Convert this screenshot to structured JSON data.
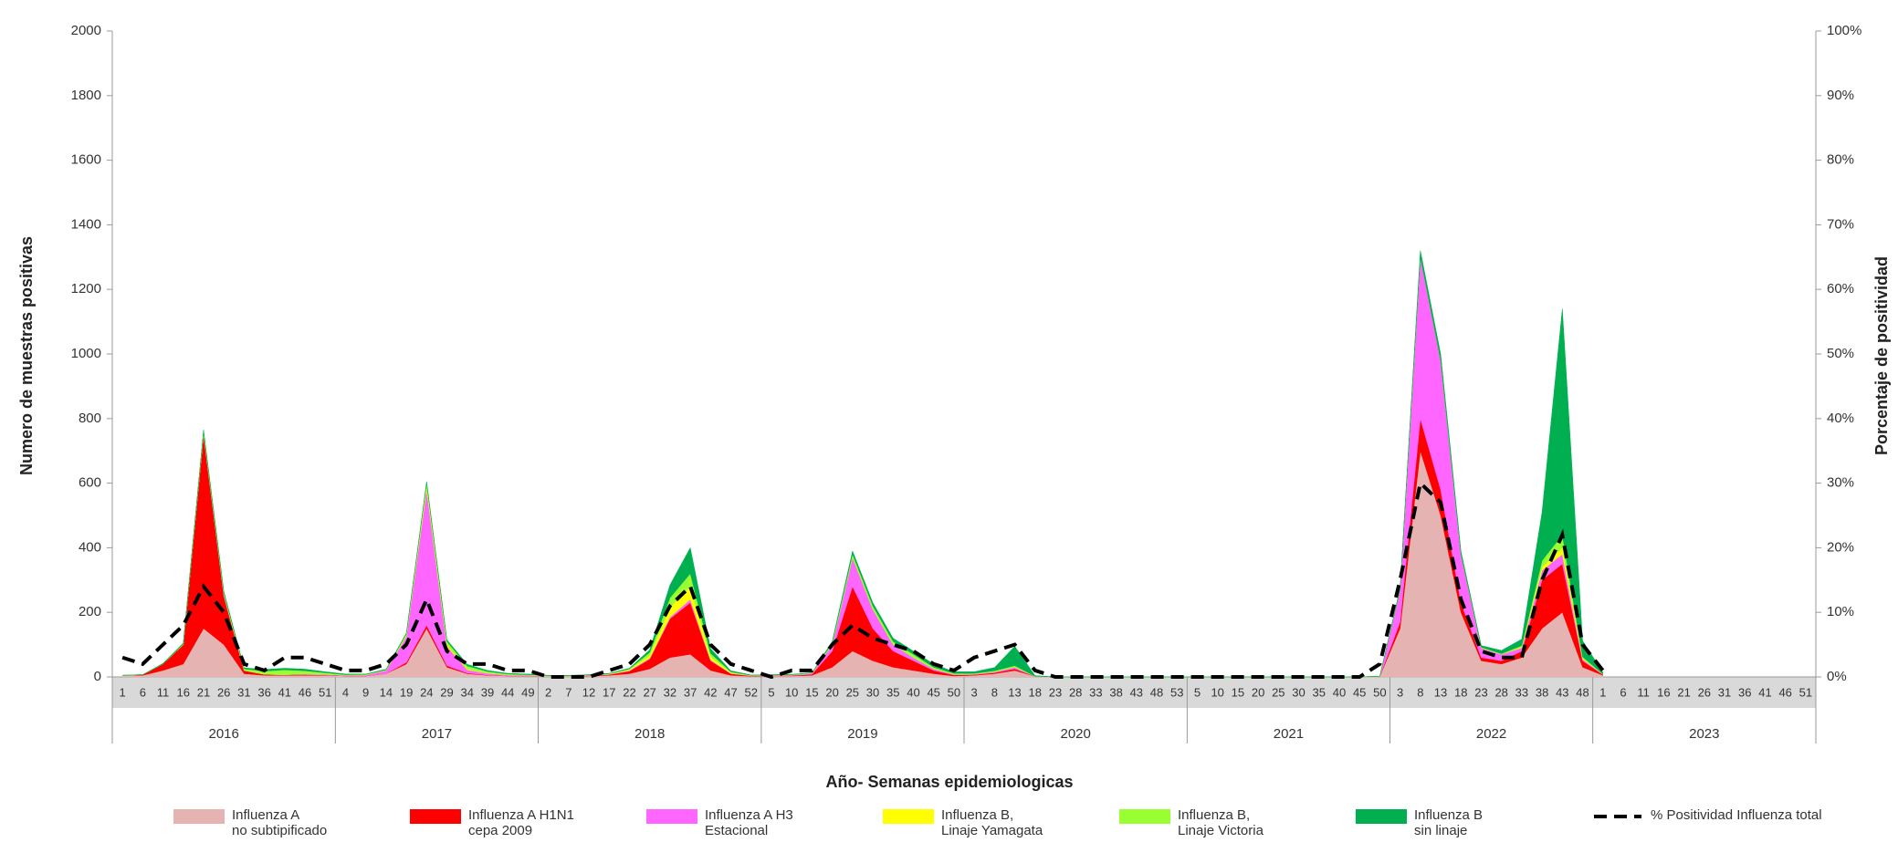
{
  "chart_data": {
    "type": "stacked_area",
    "x_label": "Año- Semanas epidemiologicas",
    "y_label": "Numero de muestras positivas",
    "y2_label": "Porcentaje de positividad",
    "categories": [
      {
        "year": "2016",
        "weeks": [
          "1",
          "6",
          "11",
          "16",
          "21",
          "26",
          "31",
          "36",
          "41",
          "46",
          "51"
        ]
      },
      {
        "year": "2017",
        "weeks": [
          "4",
          "9",
          "14",
          "19",
          "24",
          "29",
          "34",
          "39",
          "44",
          "49"
        ]
      },
      {
        "year": "2018",
        "weeks": [
          "2",
          "7",
          "12",
          "17",
          "22",
          "27",
          "32",
          "37",
          "42",
          "47",
          "52"
        ]
      },
      {
        "year": "2019",
        "weeks": [
          "5",
          "10",
          "15",
          "20",
          "25",
          "30",
          "35",
          "40",
          "45",
          "50"
        ]
      },
      {
        "year": "2020",
        "weeks": [
          "3",
          "8",
          "13",
          "18",
          "23",
          "28",
          "33",
          "38",
          "43",
          "48",
          "53"
        ]
      },
      {
        "year": "2021",
        "weeks": [
          "5",
          "10",
          "15",
          "20",
          "25",
          "30",
          "35",
          "40",
          "45",
          "50"
        ]
      },
      {
        "year": "2022",
        "weeks": [
          "3",
          "8",
          "13",
          "18",
          "23",
          "28",
          "33",
          "38",
          "43",
          "48"
        ]
      },
      {
        "year": "2023",
        "weeks": [
          "1",
          "6",
          "11",
          "16",
          "21",
          "26",
          "31",
          "36",
          "41",
          "46",
          "51"
        ]
      }
    ],
    "ylim": [
      0,
      2000
    ],
    "yticks": [
      0,
      200,
      400,
      600,
      800,
      1000,
      1200,
      1400,
      1600,
      1800,
      2000
    ],
    "y2lim": [
      0,
      100
    ],
    "y2ticks": [
      {
        "value": 0,
        "label": "0%"
      },
      {
        "value": 10,
        "label": "10%"
      },
      {
        "value": 20,
        "label": "20%"
      },
      {
        "value": 30,
        "label": "30%"
      },
      {
        "value": 40,
        "label": "40%"
      },
      {
        "value": 50,
        "label": "50%"
      },
      {
        "value": 60,
        "label": "60%"
      },
      {
        "value": 70,
        "label": "70%"
      },
      {
        "value": 80,
        "label": "80%"
      },
      {
        "value": 90,
        "label": "90%"
      },
      {
        "value": 100,
        "label": "100%"
      }
    ],
    "series": [
      {
        "name": "Influenza A\nno subtipificado",
        "color": "#e6b3b3",
        "values": [
          [
            5,
            5,
            20,
            40,
            150,
            100,
            10,
            5,
            5,
            5,
            5
          ],
          [
            3,
            3,
            10,
            40,
            150,
            30,
            10,
            5,
            3,
            3
          ],
          [
            2,
            2,
            3,
            5,
            10,
            25,
            60,
            70,
            20,
            5,
            2
          ],
          [
            3,
            3,
            5,
            30,
            80,
            50,
            30,
            20,
            10,
            3
          ],
          [
            5,
            10,
            20,
            2,
            0,
            0,
            0,
            0,
            0,
            0,
            0
          ],
          [
            0,
            0,
            0,
            0,
            0,
            0,
            0,
            0,
            0,
            2
          ],
          [
            150,
            700,
            500,
            200,
            50,
            40,
            60,
            150,
            200,
            30
          ],
          [
            5,
            null,
            null,
            null,
            null,
            null,
            null,
            null,
            null,
            null,
            null
          ]
        ]
      },
      {
        "name": "Influenza A H1N1\ncepa 2009",
        "color": "#ff0000",
        "values": [
          [
            0,
            2,
            20,
            60,
            600,
            150,
            10,
            3,
            2,
            2,
            1
          ],
          [
            0,
            0,
            0,
            5,
            10,
            5,
            2,
            1,
            0,
            0
          ],
          [
            0,
            0,
            1,
            2,
            8,
            30,
            120,
            160,
            30,
            5,
            1
          ],
          [
            1,
            1,
            3,
            50,
            200,
            100,
            50,
            30,
            10,
            3
          ],
          [
            2,
            3,
            5,
            0,
            0,
            0,
            0,
            0,
            0,
            0,
            0
          ],
          [
            0,
            0,
            0,
            0,
            0,
            0,
            0,
            0,
            0,
            0
          ],
          [
            20,
            100,
            80,
            30,
            10,
            10,
            20,
            150,
            150,
            20
          ],
          [
            2,
            null,
            null,
            null,
            null,
            null,
            null,
            null,
            null,
            null,
            null
          ]
        ]
      },
      {
        "name": "Influenza A H3\nEstacional",
        "color": "#ff66ff",
        "values": [
          [
            0,
            0,
            0,
            0,
            5,
            5,
            0,
            0,
            0,
            2,
            2
          ],
          [
            2,
            3,
            10,
            80,
            420,
            60,
            10,
            5,
            3,
            2
          ],
          [
            1,
            1,
            1,
            1,
            2,
            3,
            5,
            10,
            3,
            1,
            1
          ],
          [
            1,
            2,
            3,
            20,
            90,
            60,
            20,
            10,
            5,
            2
          ],
          [
            2,
            3,
            5,
            0,
            0,
            0,
            0,
            0,
            0,
            0,
            0
          ],
          [
            0,
            0,
            0,
            0,
            0,
            0,
            0,
            0,
            0,
            0
          ],
          [
            100,
            500,
            400,
            150,
            30,
            20,
            10,
            30,
            30,
            5
          ],
          [
            1,
            null,
            null,
            null,
            null,
            null,
            null,
            null,
            null,
            null,
            null
          ]
        ]
      },
      {
        "name": "Influenza B,\nLinaje Yamagata",
        "color": "#ffff00",
        "values": [
          [
            0,
            0,
            0,
            0,
            0,
            0,
            0,
            0,
            0,
            0,
            0
          ],
          [
            0,
            0,
            0,
            3,
            10,
            5,
            2,
            1,
            0,
            0
          ],
          [
            0,
            0,
            0,
            1,
            2,
            8,
            30,
            40,
            10,
            2,
            0
          ],
          [
            0,
            0,
            0,
            0,
            0,
            0,
            0,
            0,
            0,
            0
          ],
          [
            0,
            0,
            0,
            0,
            0,
            0,
            0,
            0,
            0,
            0,
            0
          ],
          [
            0,
            0,
            0,
            0,
            0,
            0,
            0,
            0,
            0,
            0
          ],
          [
            0,
            0,
            0,
            0,
            0,
            0,
            2,
            10,
            20,
            2
          ],
          [
            0,
            null,
            null,
            null,
            null,
            null,
            null,
            null,
            null,
            null,
            null
          ]
        ]
      },
      {
        "name": "Influenza B,\nLinaje Victoria",
        "color": "#99ff33",
        "values": [
          [
            0,
            0,
            0,
            2,
            5,
            5,
            5,
            10,
            15,
            10,
            5
          ],
          [
            2,
            2,
            2,
            5,
            10,
            10,
            10,
            5,
            3,
            2
          ],
          [
            1,
            1,
            1,
            1,
            3,
            10,
            30,
            40,
            10,
            3,
            1
          ],
          [
            1,
            1,
            1,
            5,
            10,
            10,
            10,
            10,
            5,
            3
          ],
          [
            2,
            3,
            5,
            0,
            0,
            0,
            0,
            0,
            0,
            0,
            0
          ],
          [
            0,
            0,
            0,
            0,
            0,
            0,
            0,
            0,
            0,
            0
          ],
          [
            0,
            0,
            0,
            0,
            2,
            2,
            5,
            20,
            40,
            5
          ],
          [
            1,
            null,
            null,
            null,
            null,
            null,
            null,
            null,
            null,
            null,
            null
          ]
        ]
      },
      {
        "name": "Influenza B\nsin linaje",
        "color": "#00b050",
        "values": [
          [
            0,
            0,
            2,
            3,
            5,
            5,
            3,
            5,
            5,
            5,
            3
          ],
          [
            2,
            1,
            2,
            3,
            5,
            5,
            5,
            3,
            2,
            2
          ],
          [
            1,
            1,
            1,
            1,
            2,
            8,
            40,
            80,
            15,
            3,
            1
          ],
          [
            1,
            1,
            1,
            5,
            10,
            10,
            10,
            10,
            10,
            5
          ],
          [
            5,
            10,
            60,
            2,
            0,
            0,
            0,
            0,
            0,
            0,
            0
          ],
          [
            0,
            0,
            0,
            0,
            0,
            0,
            0,
            0,
            0,
            0
          ],
          [
            5,
            20,
            20,
            10,
            5,
            10,
            20,
            150,
            700,
            50
          ],
          [
            5,
            null,
            null,
            null,
            null,
            null,
            null,
            null,
            null,
            null,
            null
          ]
        ]
      },
      {
        "name": "% Positividad Influenza total",
        "color": "#000000",
        "axis": "y2",
        "style": "dashed",
        "values": [
          [
            3,
            2,
            5,
            8,
            14,
            10,
            2,
            1,
            3,
            3,
            2
          ],
          [
            1,
            1,
            2,
            5,
            12,
            4,
            2,
            2,
            1,
            1
          ],
          [
            0,
            0,
            0,
            1,
            2,
            5,
            11,
            14,
            5,
            2,
            1
          ],
          [
            0,
            1,
            1,
            5,
            8,
            6,
            5,
            4,
            2,
            1
          ],
          [
            3,
            4,
            5,
            1,
            0,
            0,
            0,
            0,
            0,
            0,
            0
          ],
          [
            0,
            0,
            0,
            0,
            0,
            0,
            0,
            0,
            0,
            2
          ],
          [
            15,
            30,
            27,
            12,
            4,
            3,
            3,
            15,
            22,
            5
          ],
          [
            1,
            null,
            null,
            null,
            null,
            null,
            null,
            null,
            null,
            null,
            null
          ]
        ]
      }
    ]
  }
}
